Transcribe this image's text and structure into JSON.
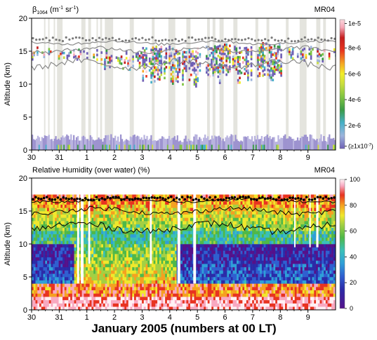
{
  "figure": {
    "footer": "January 2005 (numbers at 00 LT)"
  },
  "chart_data": [
    {
      "type": "heatmap",
      "title": "β1064 (m⁻¹ sr⁻¹)",
      "title_parts": {
        "symbol": "β",
        "subscript": "1064",
        "units_prefix": " (m",
        "exp1": "-1",
        "units_mid": " sr",
        "exp2": "-1",
        "units_suffix": ")"
      },
      "site": "MR04",
      "ylabel": "Altitude (km)",
      "ylim": [
        0,
        20
      ],
      "yticks": [
        0,
        5,
        10,
        15,
        20
      ],
      "xlim": [
        -2,
        9
      ],
      "xtick_labels": [
        "30",
        "31",
        "1",
        "2",
        "3",
        "4",
        "5",
        "6",
        "7",
        "8",
        "9"
      ],
      "colorbar": {
        "labels": [
          "1e-5",
          "8e-6",
          "6e-6",
          "4e-6",
          "2e-6",
          "(≥1x10⁻⁷)"
        ],
        "min_label_parts": {
          "prefix": "(≥1x10",
          "exp": "-7",
          "suffix": ")"
        },
        "colors": [
          "#6f60b5",
          "#9cb4dc",
          "#46b0c8",
          "#3a9b46",
          "#7fc342",
          "#c8dd3e",
          "#f2ee2a",
          "#f5a623",
          "#e8351e",
          "#c41e1e",
          "#f6a8b8",
          "#fbd6dc"
        ]
      },
      "data_gaps_days": [
        [
          -1.55,
          -1.5
        ],
        [
          -1.4,
          -1.35
        ],
        [
          -1.2,
          -1.15
        ],
        [
          -1.08,
          -0.88
        ],
        [
          -0.2,
          -0.05
        ],
        [
          0.05,
          0.15
        ],
        [
          0.35,
          0.4
        ],
        [
          0.48,
          0.55
        ],
        [
          0.65,
          0.95
        ],
        [
          1.55,
          1.7
        ],
        [
          2.35,
          2.45
        ],
        [
          2.95,
          3.2
        ],
        [
          3.6,
          3.75
        ],
        [
          4.35,
          4.45
        ],
        [
          4.55,
          4.65
        ],
        [
          4.8,
          4.95
        ],
        [
          5.3,
          5.45
        ],
        [
          6.1,
          6.2
        ],
        [
          6.5,
          6.6
        ],
        [
          7.2,
          7.3
        ],
        [
          7.7,
          7.95
        ],
        [
          8.3,
          8.45
        ],
        [
          8.55,
          8.65
        ]
      ],
      "cloud_layers": [
        {
          "x": [
            -2,
            0.5
          ],
          "top": 15.5,
          "base": 13.5
        },
        {
          "x": [
            0.5,
            2.0
          ],
          "top": 15.0,
          "base": 12.0
        },
        {
          "x": [
            2.0,
            4.0
          ],
          "top": 15.8,
          "base": 9.5
        },
        {
          "x": [
            4.0,
            7.0
          ],
          "top": 16.2,
          "base": 10.0
        },
        {
          "x": [
            7.0,
            9.0
          ],
          "top": 15.5,
          "base": 13.0
        }
      ]
    },
    {
      "type": "heatmap",
      "title": "Relative Humidity (over water) (%)",
      "site": "MR04",
      "ylabel": "Altitude (km)",
      "ylim": [
        0,
        20
      ],
      "yticks": [
        0,
        5,
        10,
        15,
        20
      ],
      "xlim": [
        -2,
        9
      ],
      "xtick_labels": [
        "30",
        "31",
        "1",
        "2",
        "3",
        "4",
        "5",
        "6",
        "7",
        "8",
        "9"
      ],
      "colorbar": {
        "labels": [
          "100",
          "80",
          "60",
          "40",
          "20",
          "0"
        ],
        "ticks": [
          100,
          80,
          60,
          40,
          20,
          0
        ],
        "colors": [
          "#55118a",
          "#2b2ba8",
          "#2f5fd0",
          "#2f9fd8",
          "#3ac0b8",
          "#4fb848",
          "#a3d043",
          "#f0e82c",
          "#f5a020",
          "#e83320",
          "#f8a8c0",
          "#fff0f4"
        ]
      },
      "data_gaps_days": [
        [
          -0.35,
          -0.28
        ],
        [
          -0.22,
          -0.12
        ],
        [
          0.05,
          0.12
        ],
        [
          2.28,
          2.35
        ],
        [
          3.28,
          3.38
        ],
        [
          3.85,
          3.95
        ],
        [
          7.5,
          7.55
        ],
        [
          8.05,
          8.1
        ],
        [
          8.3,
          8.38
        ]
      ]
    }
  ]
}
